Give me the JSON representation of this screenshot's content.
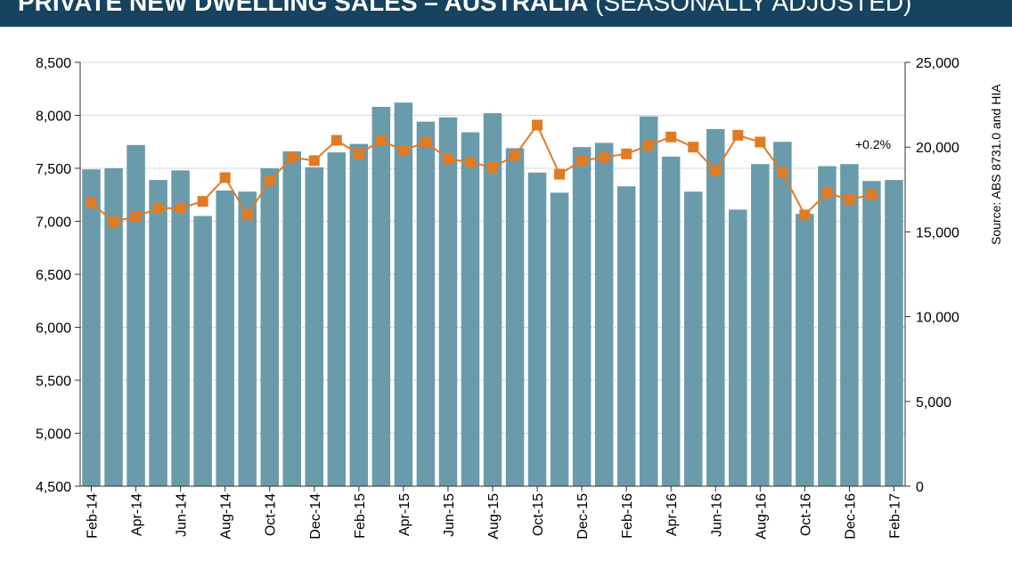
{
  "header": {
    "title_bold": "PRIVATE NEW DWELLING SALES – AUSTRALIA",
    "title_light": "(SEASONALLY ADJUSTED)"
  },
  "source": "Source: ABS 8731.0 and HIA",
  "colors": {
    "header_bg": "#154360",
    "bar": "#6A9BAB",
    "line": "#E07B24",
    "grid": "#9a9a9a",
    "axis": "#333333"
  },
  "chart_data": {
    "type": "bar",
    "categories": [
      "Feb-14",
      "Mar-14",
      "Apr-14",
      "May-14",
      "Jun-14",
      "Jul-14",
      "Aug-14",
      "Sep-14",
      "Oct-14",
      "Nov-14",
      "Dec-14",
      "Jan-15",
      "Feb-15",
      "Mar-15",
      "Apr-15",
      "May-15",
      "Jun-15",
      "Jul-15",
      "Aug-15",
      "Sep-15",
      "Oct-15",
      "Nov-15",
      "Dec-15",
      "Jan-16",
      "Feb-16",
      "Mar-16",
      "Apr-16",
      "May-16",
      "Jun-16",
      "Jul-16",
      "Aug-16",
      "Sep-16",
      "Oct-16",
      "Nov-16",
      "Dec-16",
      "Jan-17",
      "Feb-17"
    ],
    "x_tick_labels": [
      "Feb-14",
      "Apr-14",
      "Jun-14",
      "Aug-14",
      "Oct-14",
      "Dec-14",
      "Feb-15",
      "Apr-15",
      "Jun-15",
      "Aug-15",
      "Oct-15",
      "Dec-15",
      "Feb-16",
      "Apr-16",
      "Jun-16",
      "Aug-16",
      "Oct-16",
      "Dec-16",
      "Feb-17"
    ],
    "series": [
      {
        "type": "bar",
        "axis": "left",
        "values": [
          7490,
          7500,
          7720,
          7390,
          7480,
          7050,
          7290,
          7280,
          7500,
          7660,
          7510,
          7650,
          7730,
          8080,
          8120,
          7940,
          7980,
          7840,
          8020,
          7690,
          7460,
          7270,
          7700,
          7740,
          7330,
          7990,
          7610,
          7280,
          7870,
          7110,
          7540,
          7750,
          7070,
          7520,
          7540,
          7380,
          7390
        ]
      },
      {
        "type": "line",
        "axis": "right",
        "values": [
          16700,
          15600,
          15900,
          16400,
          16400,
          16800,
          18200,
          16000,
          18000,
          19400,
          19200,
          20400,
          19600,
          20400,
          19800,
          20300,
          19300,
          19100,
          18800,
          19500,
          21300,
          18400,
          19200,
          19400,
          19600,
          20100,
          20600,
          20000,
          18600,
          20700,
          20300,
          18500,
          16000,
          17300,
          16900,
          17200,
          null
        ]
      }
    ],
    "y_left": {
      "ylim": [
        4500,
        8500
      ],
      "ticks": [
        "8,500",
        "8,000",
        "7,500",
        "7,000",
        "6,500",
        "6,000",
        "5,500",
        "5,000",
        "4,500"
      ]
    },
    "y_right": {
      "ylim": [
        0,
        25000
      ],
      "ticks": [
        "25,000",
        "20,000",
        "15,000",
        "10,000",
        "5,000",
        "0"
      ]
    },
    "grid": "horizontal dotted",
    "annotation": "+0.2%"
  }
}
